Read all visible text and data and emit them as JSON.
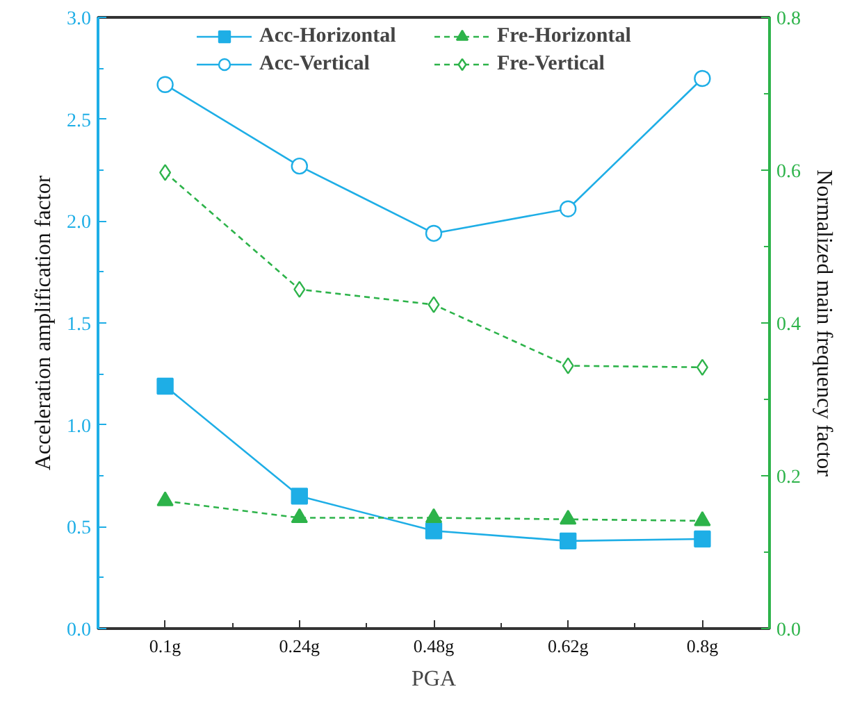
{
  "chart_data": {
    "type": "line",
    "xlabel": "PGA",
    "ylabel": "Acceleration amplification factor",
    "y2label": "Normalized main frequency factor",
    "categories": [
      "0.1g",
      "0.24g",
      "0.48g",
      "0.62g",
      "0.8g"
    ],
    "series": [
      {
        "name": "Acc-Horizontal",
        "color": "#1eaee6",
        "marker": "square",
        "line_style": "solid",
        "values": [
          1.19,
          0.65,
          0.48,
          0.43,
          0.44
        ]
      },
      {
        "name": "Acc-Vertical",
        "color": "#1eaee6",
        "marker": "circle",
        "line_style": "solid",
        "values": [
          2.67,
          2.27,
          1.94,
          2.06,
          2.7
        ]
      },
      {
        "name": "Fre-Horizontal",
        "color": "#2db34a",
        "marker": "triangle",
        "line_style": "dashed",
        "axis": "y2",
        "values": [
          0.167,
          0.145,
          0.145,
          0.143,
          0.141
        ]
      },
      {
        "name": "Fre-Vertical",
        "color": "#2db34a",
        "marker": "diamond",
        "line_style": "dashed",
        "axis": "y2",
        "values": [
          0.597,
          0.444,
          0.424,
          0.344,
          0.342
        ]
      }
    ],
    "ylim": [
      0,
      3.0
    ],
    "yticks": [
      "0.0",
      0.5,
      "1.0",
      1.5,
      "2.0",
      2.5,
      "3.0"
    ],
    "y2lim": [
      0,
      0.8
    ],
    "y2ticks": [
      "0.0",
      0.2,
      0.4,
      0.6,
      0.8
    ],
    "grid": false,
    "legend": "top"
  }
}
